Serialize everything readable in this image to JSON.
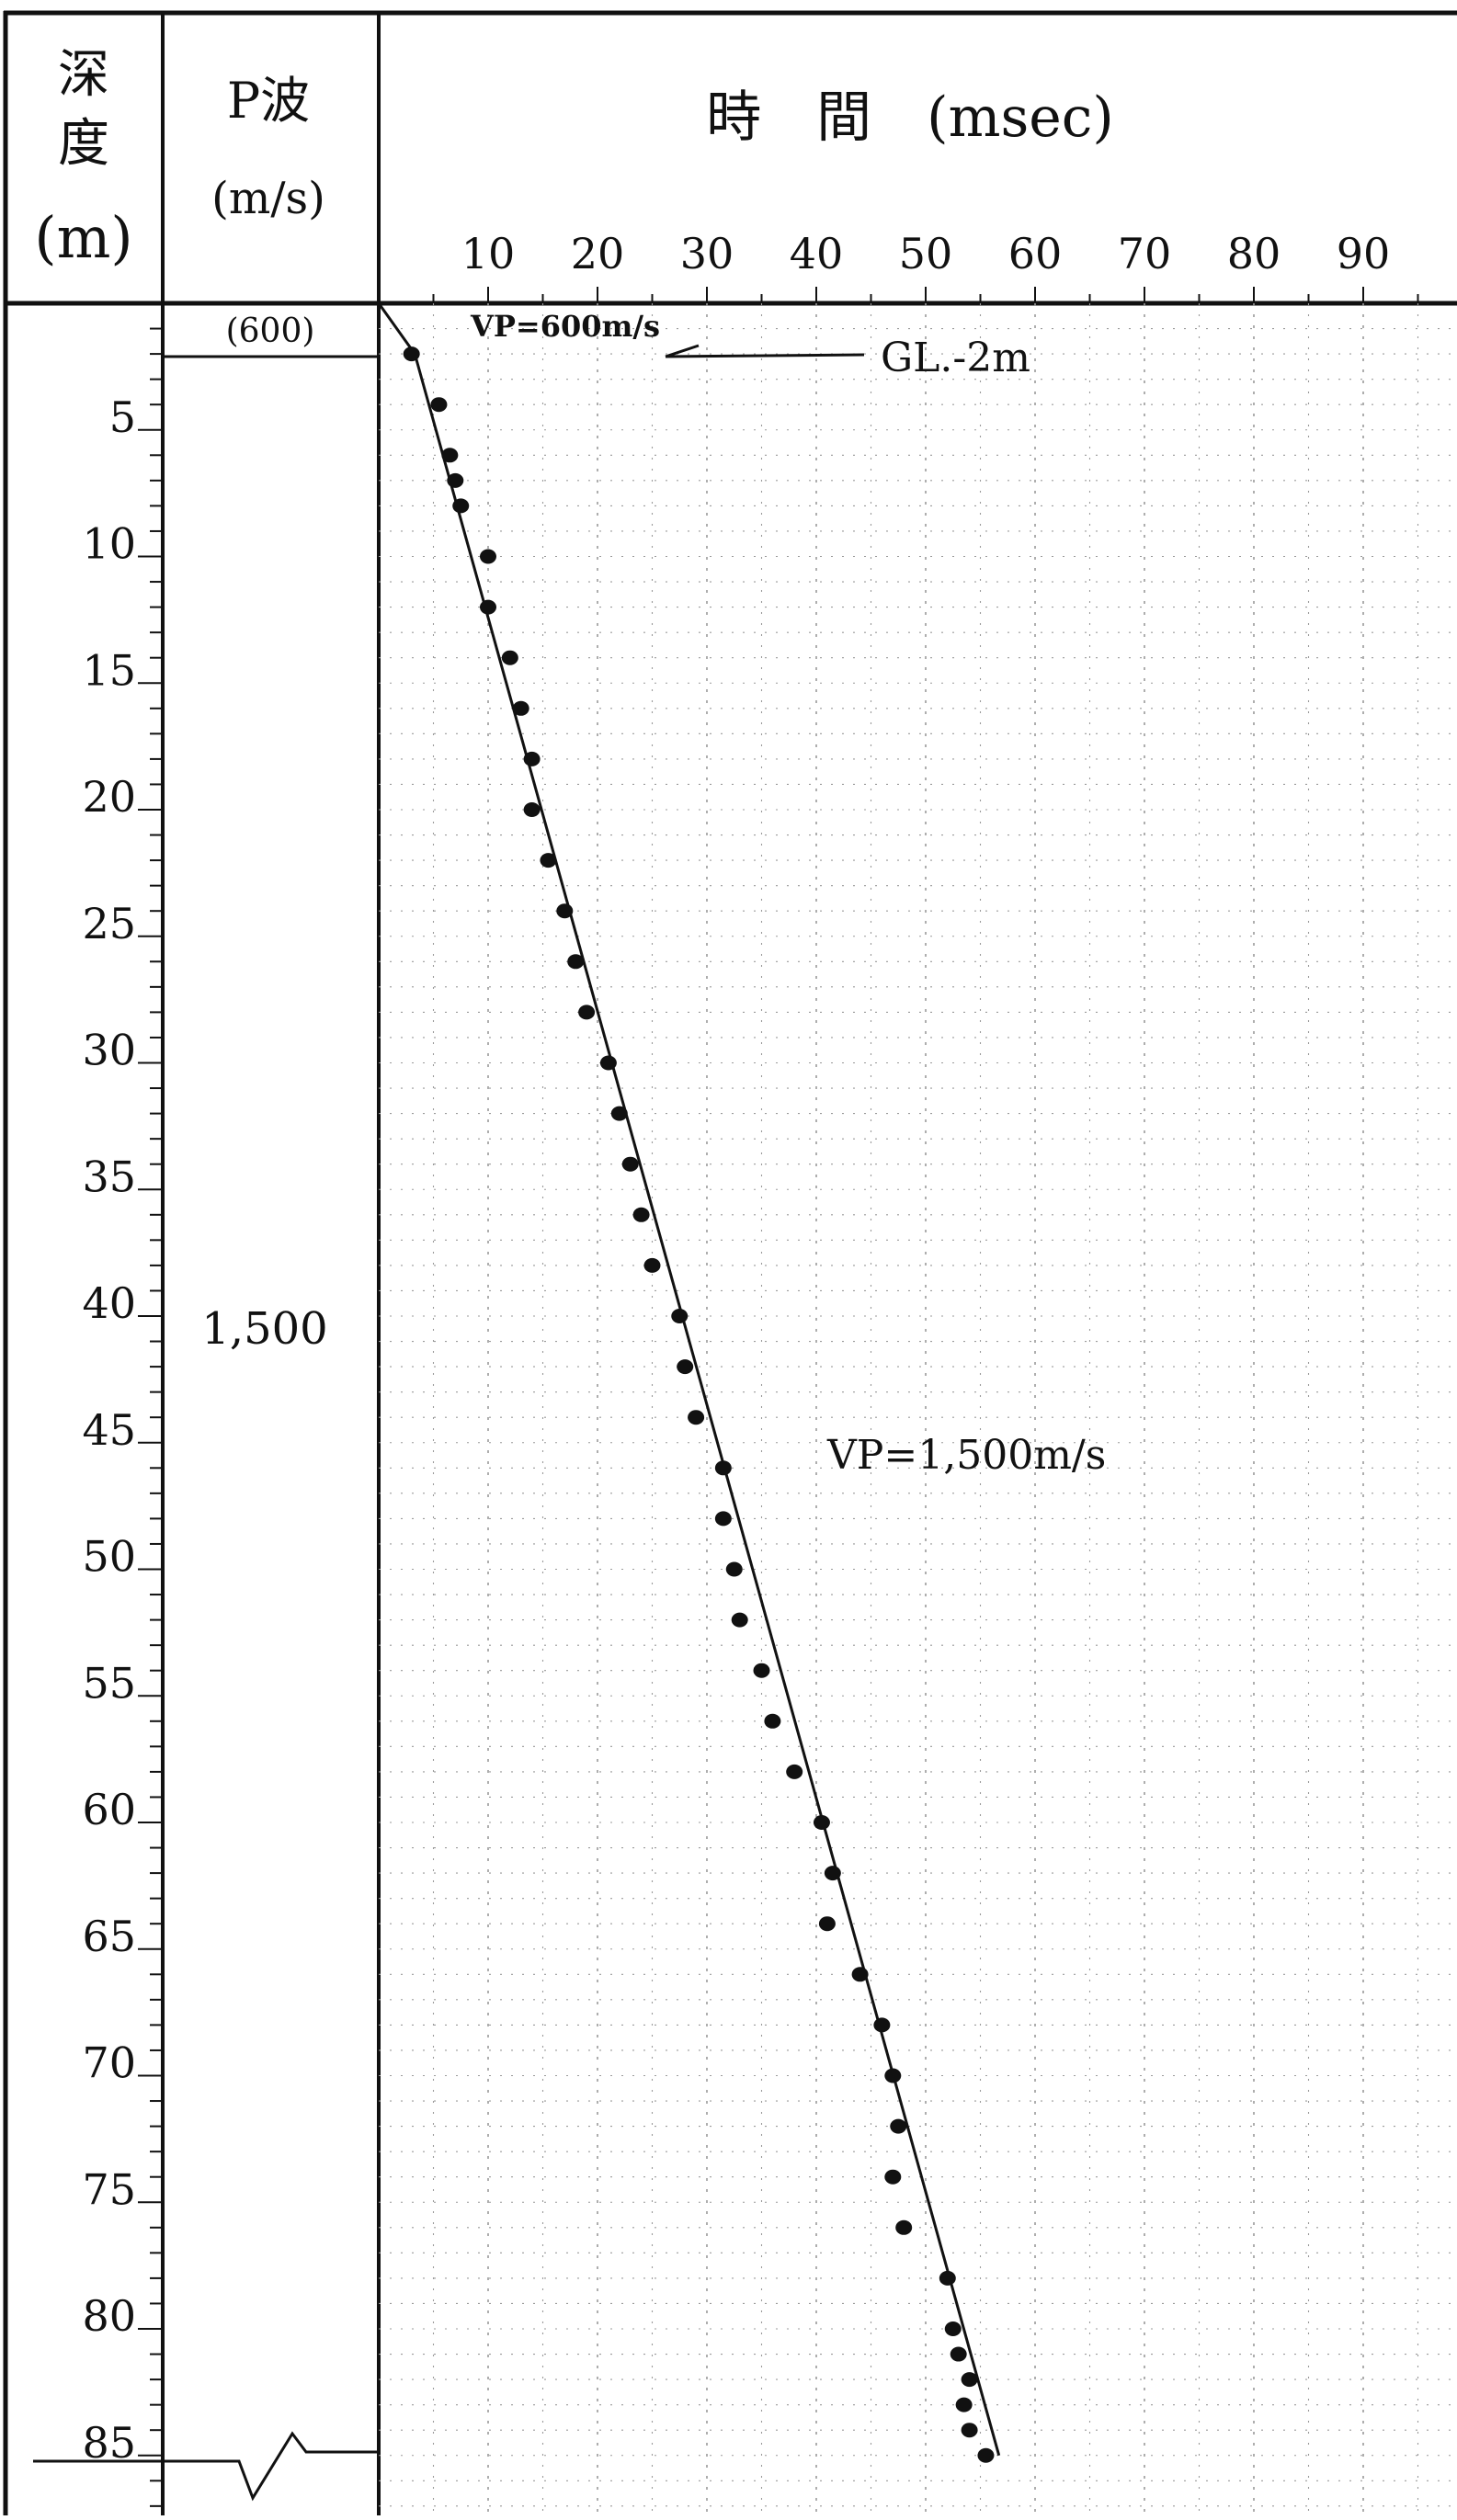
{
  "header": {
    "depth_label_line1": "深",
    "depth_label_line2": "度",
    "depth_label_line3": "(m)",
    "pwave_label_line1": "P波",
    "pwave_label_line2": "(m/s)",
    "time_label": "時　間　(msec)"
  },
  "velocity_column": {
    "upper_value": "(600)",
    "lower_value": "1,500"
  },
  "annotations": {
    "vp_upper": "VP=600m/s",
    "gl_label": "GL.-2m",
    "vp_lower": "VP=1,500m/s"
  },
  "colors": {
    "ink": "#111111",
    "grid": "#9a9a9a",
    "background": "#ffffff"
  },
  "chart_data": {
    "type": "scatter",
    "xlabel": "時　間　(msec)",
    "ylabel": "深度(m)",
    "x_ticks": [
      10,
      20,
      30,
      40,
      50,
      60,
      70,
      80,
      90
    ],
    "y_ticks": [
      5,
      10,
      15,
      20,
      25,
      30,
      35,
      40,
      45,
      50,
      55,
      60,
      65,
      70,
      75,
      80,
      85
    ],
    "xlim": [
      0,
      95
    ],
    "ylim": [
      0,
      87
    ],
    "y_inverted": true,
    "grid": true,
    "points": [
      {
        "t": 3,
        "d": 2
      },
      {
        "t": 5.5,
        "d": 4
      },
      {
        "t": 6.5,
        "d": 6
      },
      {
        "t": 7,
        "d": 7
      },
      {
        "t": 7.5,
        "d": 8
      },
      {
        "t": 10,
        "d": 10
      },
      {
        "t": 10,
        "d": 12
      },
      {
        "t": 12,
        "d": 14
      },
      {
        "t": 13,
        "d": 16
      },
      {
        "t": 14,
        "d": 18
      },
      {
        "t": 14,
        "d": 20
      },
      {
        "t": 15.5,
        "d": 22
      },
      {
        "t": 17,
        "d": 24
      },
      {
        "t": 18,
        "d": 26
      },
      {
        "t": 19,
        "d": 28
      },
      {
        "t": 21,
        "d": 30
      },
      {
        "t": 22,
        "d": 32
      },
      {
        "t": 23,
        "d": 34
      },
      {
        "t": 24,
        "d": 36
      },
      {
        "t": 25,
        "d": 38
      },
      {
        "t": 27.5,
        "d": 40
      },
      {
        "t": 28,
        "d": 42
      },
      {
        "t": 29,
        "d": 44
      },
      {
        "t": 31.5,
        "d": 46
      },
      {
        "t": 31.5,
        "d": 48
      },
      {
        "t": 32.5,
        "d": 50
      },
      {
        "t": 33,
        "d": 52
      },
      {
        "t": 35,
        "d": 54
      },
      {
        "t": 36,
        "d": 56
      },
      {
        "t": 38,
        "d": 58
      },
      {
        "t": 40.5,
        "d": 60
      },
      {
        "t": 41.5,
        "d": 62
      },
      {
        "t": 41,
        "d": 64
      },
      {
        "t": 44,
        "d": 66
      },
      {
        "t": 46,
        "d": 68
      },
      {
        "t": 47,
        "d": 70
      },
      {
        "t": 47.5,
        "d": 72
      },
      {
        "t": 47,
        "d": 74
      },
      {
        "t": 48,
        "d": 76
      },
      {
        "t": 52,
        "d": 78
      },
      {
        "t": 52.5,
        "d": 80
      },
      {
        "t": 53,
        "d": 81
      },
      {
        "t": 54,
        "d": 82
      },
      {
        "t": 53.5,
        "d": 83
      },
      {
        "t": 54,
        "d": 84
      },
      {
        "t": 55.5,
        "d": 85
      }
    ],
    "fit_lines": [
      {
        "name": "VP=600m/s",
        "points": [
          [
            0,
            0
          ],
          [
            3.3,
            2
          ]
        ]
      },
      {
        "name": "VP=1,500m/s",
        "points": [
          [
            3.3,
            2
          ],
          [
            56.7,
            85
          ]
        ]
      }
    ],
    "layer_boundaries_m": [
      2,
      85
    ]
  }
}
